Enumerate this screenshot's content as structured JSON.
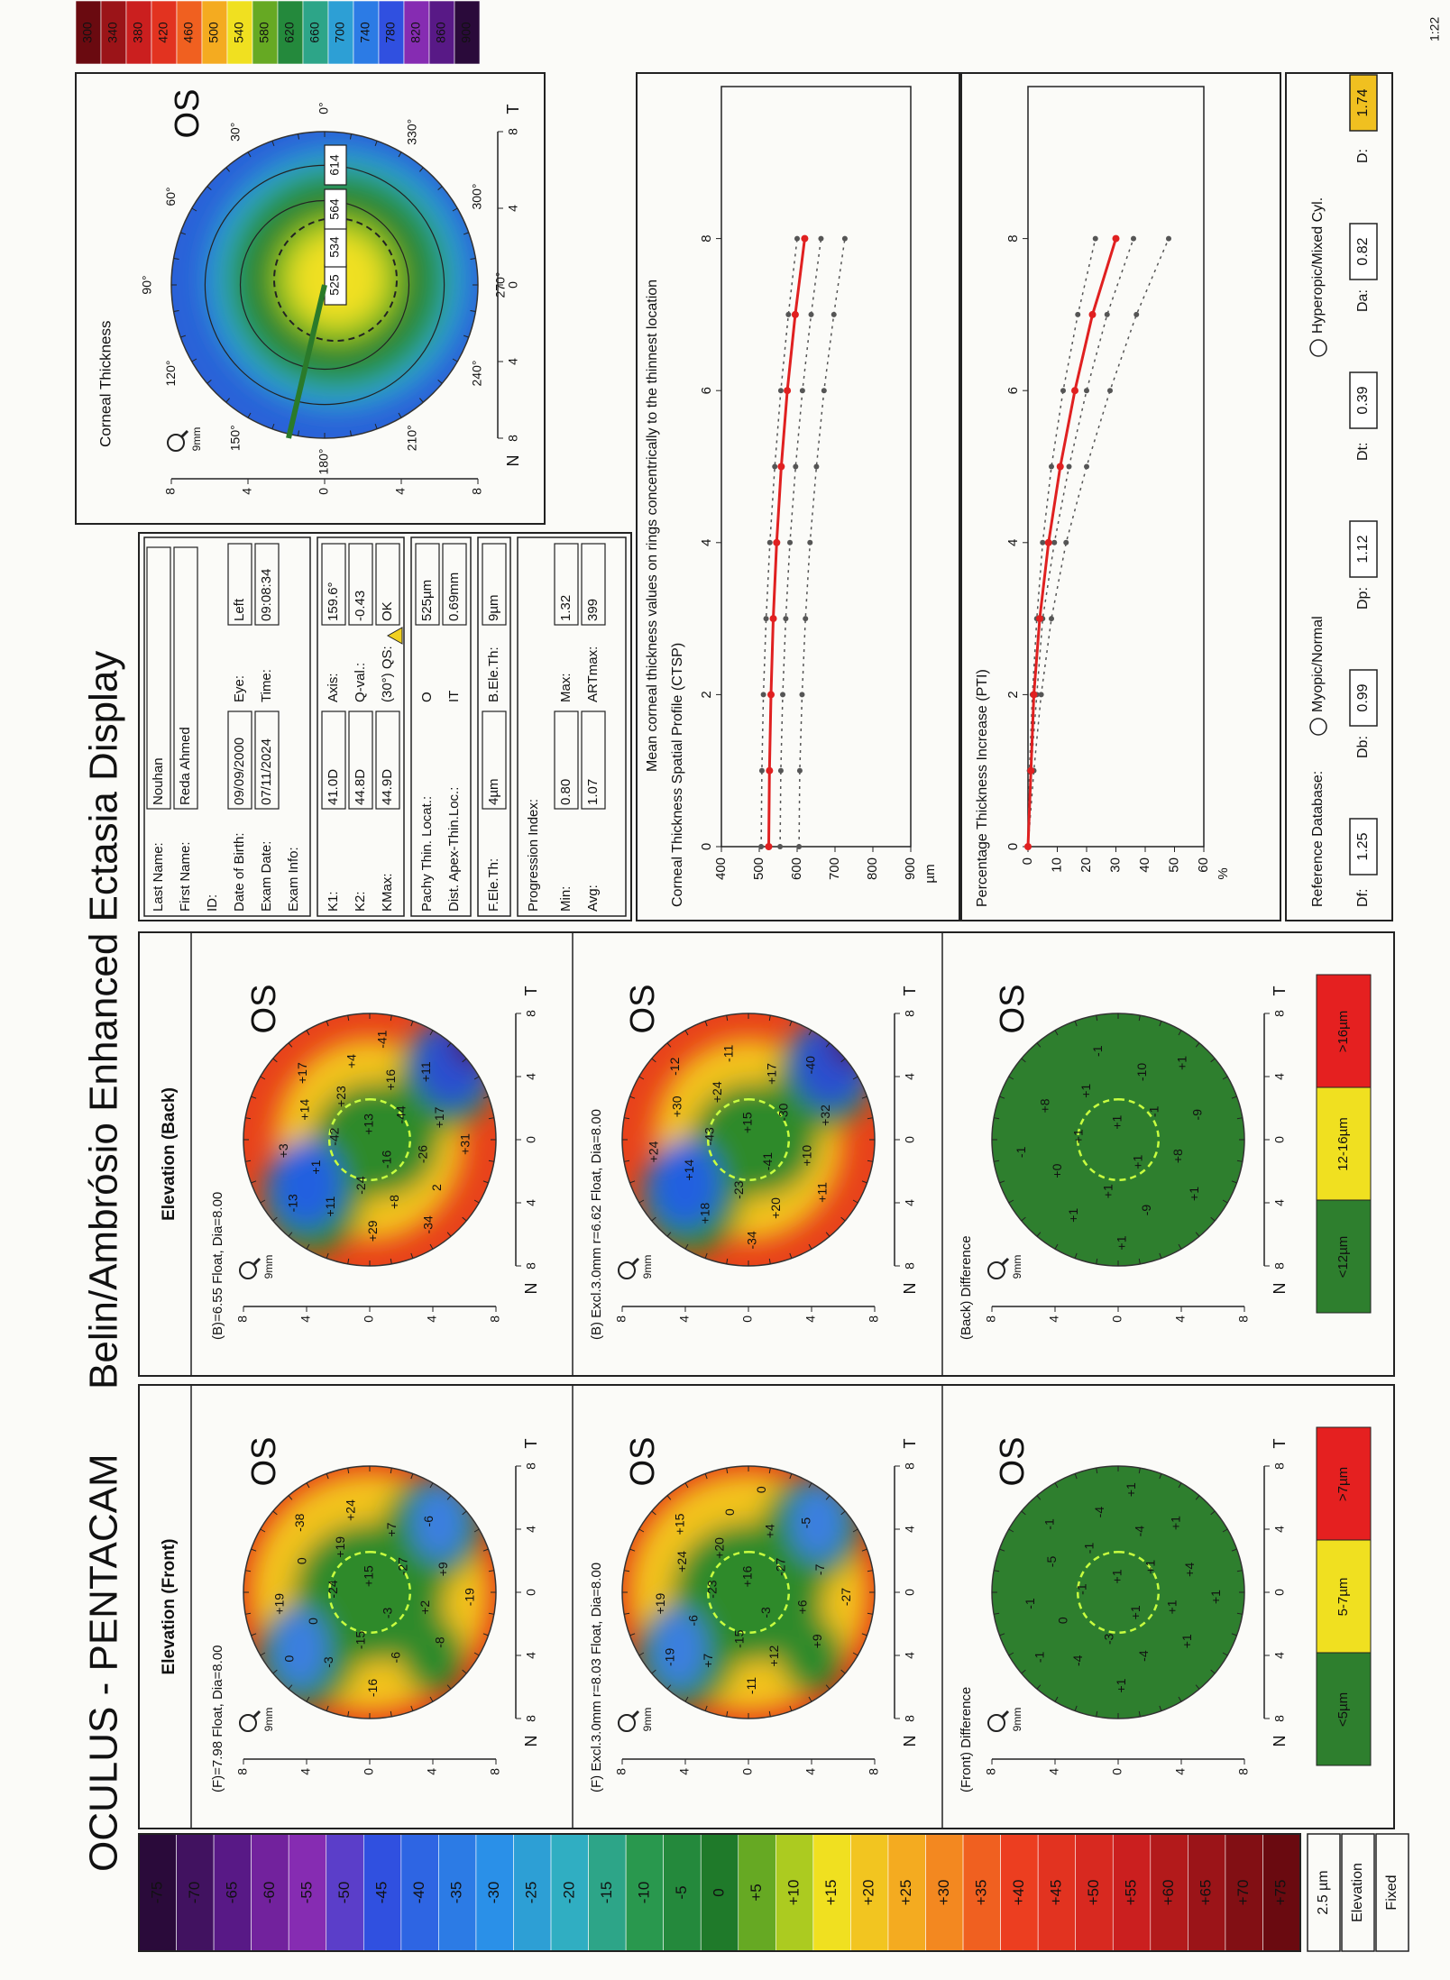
{
  "header": {
    "brand": "OCULUS - PENTACAM",
    "title": "Belin/Ambrósio Enhanced Ectasia Display",
    "page": "1:22"
  },
  "elevation_scale": {
    "labels": [
      "-75",
      "-70",
      "-65",
      "-60",
      "-55",
      "-50",
      "-45",
      "-40",
      "-35",
      "-30",
      "-25",
      "-20",
      "-15",
      "-10",
      "-5",
      "0",
      "+5",
      "+10",
      "+15",
      "+20",
      "+25",
      "+30",
      "+35",
      "+40",
      "+45",
      "+50",
      "+55",
      "+60",
      "+65",
      "+70",
      "+75"
    ],
    "step": "2.5 µm",
    "mode": "Elevation",
    "fixed": "Fixed"
  },
  "axis": {
    "ticks": [
      "8",
      "4",
      "0",
      "4",
      "8"
    ],
    "nasal": "N",
    "temporal": "T"
  },
  "front": {
    "title": "Elevation (Front)",
    "maps": [
      {
        "caption": "(F)=7.98 Float, Dia=8.00",
        "eye": "OS",
        "zoom": "9mm",
        "values": [
          "+15",
          "-3",
          "-24",
          "-27",
          "-15",
          "+19",
          "+2",
          "0",
          "+7",
          "-6",
          "0",
          "+9",
          "-3",
          "+24",
          "-8",
          "+19",
          "-6",
          "-16",
          "-38",
          "-19",
          "0"
        ]
      },
      {
        "caption": "(F) Excl.3.0mm r=8.03 Float, Dia=8.00",
        "eye": "OS",
        "zoom": "9mm",
        "values": [
          "+16",
          "-3",
          "-23",
          "-27",
          "-15",
          "+20",
          "+6",
          "-6",
          "+4",
          "+12",
          "+24",
          "-7",
          "+7",
          "0",
          "+9",
          "+19",
          "-5",
          "-11",
          "+15",
          "-27",
          "-19",
          "0"
        ]
      },
      {
        "caption": "(Front) Difference",
        "eye": "OS",
        "zoom": "9mm",
        "values": [
          "+1",
          "+1",
          "-1",
          "+1",
          "-3",
          "-1",
          "+1",
          "0",
          "-4",
          "-4",
          "-5",
          "+4",
          "-4",
          "-4",
          "+1",
          "-1",
          "+1",
          "+1",
          "-1",
          "+1",
          "-1",
          "+1"
        ]
      }
    ],
    "legend": [
      "<5µm",
      "5-7µm",
      ">7µm"
    ]
  },
  "back": {
    "title": "Elevation (Back)",
    "maps": [
      {
        "caption": "(B)=6.55 Float, Dia=8.00",
        "eye": "OS",
        "zoom": "9mm",
        "values": [
          "+13",
          "-16",
          "-42",
          "-44",
          "-24",
          "+23",
          "-26",
          "+1",
          "+16",
          "+8",
          "+14",
          "+17",
          "+11",
          "+4",
          "2",
          "+3",
          "+11",
          "+29",
          "+17",
          "+31",
          "-13",
          "-41",
          "-34"
        ]
      },
      {
        "caption": "(B) Excl.3.0mm r=6.62 Float, Dia=8.00",
        "eye": "OS",
        "zoom": "9mm",
        "values": [
          "+15",
          "-41",
          "-43",
          "-30",
          "-23",
          "+24",
          "+10",
          "+14",
          "+17",
          "+20",
          "+30",
          "+32",
          "+18",
          "-11",
          "+11",
          "+24",
          "-40",
          "-34",
          "-12"
        ]
      },
      {
        "caption": "(Back) Difference",
        "eye": "OS",
        "zoom": "9mm",
        "values": [
          "+1",
          "+1",
          "+1",
          "-1",
          "+1",
          "+1",
          "+8",
          "+0",
          "-10",
          "-9",
          "+8",
          "-9",
          "+1",
          "-1",
          "+1",
          "-1",
          "+1",
          "+1"
        ]
      }
    ],
    "legend": [
      "<12µm",
      "12-16µm",
      ">16µm"
    ]
  },
  "info": {
    "patient": [
      [
        "Last Name:",
        "Nouhan"
      ],
      [
        "First Name:",
        "Reda Ahmed"
      ],
      [
        "ID:"
      ],
      [
        "Date of Birth:",
        "09/09/2000",
        "Eye:",
        "Left"
      ],
      [
        "Exam Date:",
        "07/11/2024",
        "Time:",
        "09:08:34"
      ],
      [
        "Exam Info:"
      ]
    ],
    "keratometry": [
      [
        "K1:",
        "41.0D",
        "Axis:",
        "159.6°"
      ],
      [
        "K2:",
        "44.8D",
        "Q-val.:",
        "-0.43"
      ],
      [
        "KMax:",
        "44.9D",
        "(30°) QS:",
        "OK"
      ]
    ],
    "pachymetry": [
      [
        "Pachy Thin. Locat.:",
        "O",
        "525µm"
      ],
      [
        "Dist. Apex-Thin.Loc.:",
        "IT",
        "0.69mm"
      ]
    ],
    "elevation": [
      [
        "F.Ele.Th:",
        "4µm",
        "B.Ele.Th:",
        "9µm"
      ]
    ],
    "progression": {
      "title": "Progression Index:",
      "rows": [
        [
          "Min:",
          "0.80",
          "Max:",
          "1.32"
        ],
        [
          "Avg:",
          "1.07",
          "ARTmax:",
          "399"
        ]
      ]
    }
  },
  "thickness": {
    "title": "Corneal Thickness",
    "eye": "OS",
    "zoom": "9mm",
    "values": [
      525,
      534,
      564,
      614
    ],
    "angles": [
      "0°",
      "30°",
      "60°",
      "90°",
      "120°",
      "150°",
      "180°",
      "210°",
      "240°",
      "270°",
      "300°",
      "330°"
    ]
  },
  "thickness_scale": {
    "labels": [
      300,
      340,
      380,
      420,
      460,
      500,
      540,
      580,
      620,
      660,
      700,
      740,
      780,
      820,
      860,
      900
    ]
  },
  "ctsp": {
    "title": "Corneal Thickness Spatial Profile (CTSP)",
    "note": "Mean corneal thickness values on rings concentrically to the thinnest location",
    "unit": "µm",
    "x": [
      0,
      1,
      2,
      3,
      4,
      5,
      6,
      7,
      8
    ],
    "xlim": [
      0,
      10
    ],
    "xticks": [
      0,
      2,
      4,
      6,
      8
    ],
    "ylim": [
      400,
      900
    ],
    "yticks": [
      400,
      500,
      600,
      700,
      800,
      900
    ],
    "inverted": true,
    "series": [
      {
        "color": "#555555",
        "dash": true,
        "values": [
          505,
          507,
          511,
          518,
          528,
          541,
          557,
          577,
          600
        ]
      },
      {
        "color": "#555555",
        "dash": true,
        "values": [
          555,
          557,
          562,
          570,
          581,
          596,
          614,
          637,
          663
        ]
      },
      {
        "color": "#555555",
        "dash": true,
        "values": [
          605,
          607,
          613,
          622,
          634,
          651,
          671,
          697,
          726
        ]
      },
      {
        "color": "#e02020",
        "dash": false,
        "values": [
          525,
          527,
          531,
          537,
          546,
          558,
          574,
          595,
          620
        ]
      }
    ]
  },
  "pti": {
    "title": "Percentage Thickness Increase (PTI)",
    "unit": "%",
    "x": [
      0,
      1,
      2,
      3,
      4,
      5,
      6,
      7,
      8
    ],
    "xlim": [
      0,
      10
    ],
    "xticks": [
      0,
      2,
      4,
      6,
      8
    ],
    "ylim": [
      0,
      60
    ],
    "yticks": [
      0,
      10,
      20,
      30,
      40,
      50,
      60
    ],
    "inverted": true,
    "series": [
      {
        "color": "#555555",
        "dash": true,
        "values": [
          0,
          0.5,
          1.5,
          3,
          5,
          8,
          12,
          17,
          23
        ]
      },
      {
        "color": "#555555",
        "dash": true,
        "values": [
          0,
          1,
          3,
          5,
          9,
          14,
          20,
          27,
          36
        ]
      },
      {
        "color": "#555555",
        "dash": true,
        "values": [
          0,
          2,
          4.5,
          8,
          13,
          20,
          28,
          37,
          48
        ]
      },
      {
        "color": "#e02020",
        "dash": false,
        "values": [
          0,
          1,
          2,
          4,
          7,
          11,
          16,
          22,
          30
        ]
      }
    ]
  },
  "reference": {
    "label": "Reference Database:",
    "options": [
      "Myopic/Normal",
      "Hyperopic/Mixed Cyl."
    ],
    "scores": [
      {
        "label": "Df:",
        "value": 1.25
      },
      {
        "label": "Db:",
        "value": 0.99
      },
      {
        "label": "Dp:",
        "value": 1.12
      },
      {
        "label": "Dt:",
        "value": 0.39
      },
      {
        "label": "Da:",
        "value": 0.82
      },
      {
        "label": "D:",
        "value": 1.74
      }
    ]
  }
}
